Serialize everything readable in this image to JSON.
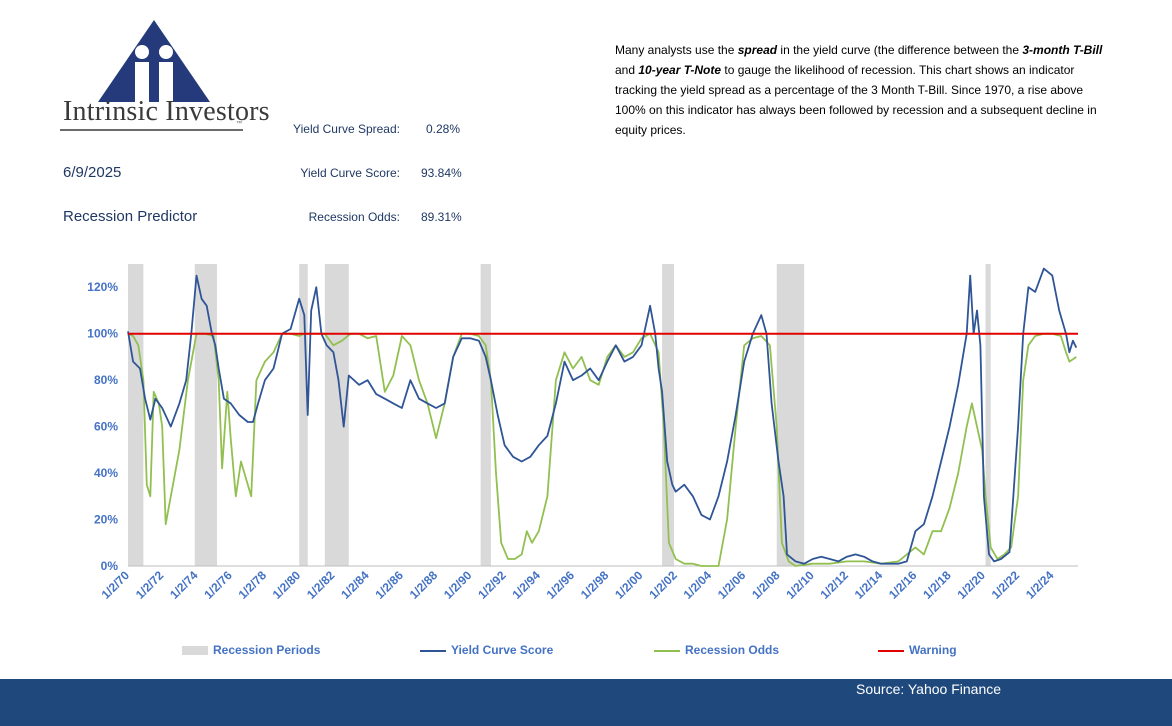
{
  "brand": {
    "name": "Intrinsic Investors"
  },
  "header": {
    "date": "6/9/2025",
    "title": "Recession Predictor",
    "metrics": [
      {
        "label": "Yield Curve Spread:",
        "value": "0.28%"
      },
      {
        "label": "Yield Curve Score:",
        "value": "93.84%"
      },
      {
        "label": "Recession Odds:",
        "value": "89.31%"
      }
    ]
  },
  "description": {
    "p1": "Many analysts use the ",
    "em1": "spread",
    "p2": " in the yield curve (the difference between the ",
    "em2": "3-month T-Bill",
    "p3": " and ",
    "em3": "10-year T-Note",
    "p4": "  to gauge the likelihood of recession.  This chart shows an indicator tracking the yield spread as a percentage of the 3 Month T-Bill.  Since 1970, a rise above 100% on this indicator has always been followed by recession and a subsequent decline in equity prices."
  },
  "colors": {
    "score": "#2f5597",
    "odds": "#92c050",
    "warning": "#e00000",
    "recession": "#d9d9d9",
    "axis_text": "#4472c4",
    "footer": "#1f497d"
  },
  "chart_data": {
    "type": "line",
    "x_axis": {
      "min": 1970.0,
      "max": 2025.5,
      "tick_years": [
        1970,
        1972,
        1974,
        1976,
        1978,
        1980,
        1982,
        1984,
        1986,
        1988,
        1990,
        1992,
        1994,
        1996,
        1998,
        2000,
        2002,
        2004,
        2006,
        2008,
        2010,
        2012,
        2014,
        2016,
        2018,
        2020,
        2022,
        2024
      ],
      "tick_labels": [
        "1/2/70",
        "1/2/72",
        "1/2/74",
        "1/2/76",
        "1/2/78",
        "1/2/80",
        "1/2/82",
        "1/2/84",
        "1/2/86",
        "1/2/88",
        "1/2/90",
        "1/2/92",
        "1/2/94",
        "1/2/96",
        "1/2/98",
        "1/2/00",
        "1/2/02",
        "1/2/04",
        "1/2/06",
        "1/2/08",
        "1/2/10",
        "1/2/12",
        "1/2/14",
        "1/2/16",
        "1/2/18",
        "1/2/20",
        "1/2/22",
        "1/2/24"
      ]
    },
    "y_axis": {
      "min": 0,
      "max": 130,
      "ticks": [
        0,
        20,
        40,
        60,
        80,
        100,
        120
      ],
      "tick_labels": [
        "0%",
        "20%",
        "40%",
        "60%",
        "80%",
        "100%",
        "120%"
      ]
    },
    "recession_periods": [
      [
        1970.0,
        1970.9
      ],
      [
        1973.9,
        1975.2
      ],
      [
        1980.0,
        1980.5
      ],
      [
        1981.5,
        1982.9
      ],
      [
        1990.6,
        1991.2
      ],
      [
        2001.2,
        2001.9
      ],
      [
        2007.9,
        2009.5
      ],
      [
        2020.1,
        2020.4
      ]
    ],
    "warning_level": 100,
    "series": [
      {
        "name": "Yield Curve Score",
        "points": [
          [
            1970.0,
            101
          ],
          [
            1970.3,
            88
          ],
          [
            1970.7,
            85
          ],
          [
            1971.0,
            72
          ],
          [
            1971.3,
            63
          ],
          [
            1971.6,
            72
          ],
          [
            1972.0,
            68
          ],
          [
            1972.5,
            60
          ],
          [
            1973.0,
            70
          ],
          [
            1973.4,
            80
          ],
          [
            1973.7,
            100
          ],
          [
            1974.0,
            125
          ],
          [
            1974.3,
            115
          ],
          [
            1974.6,
            112
          ],
          [
            1974.9,
            100
          ],
          [
            1975.1,
            95
          ],
          [
            1975.3,
            85
          ],
          [
            1975.6,
            72
          ],
          [
            1976.0,
            70
          ],
          [
            1976.5,
            65
          ],
          [
            1977.0,
            62
          ],
          [
            1977.3,
            62
          ],
          [
            1977.6,
            70
          ],
          [
            1978.0,
            80
          ],
          [
            1978.5,
            85
          ],
          [
            1979.0,
            100
          ],
          [
            1979.5,
            102
          ],
          [
            1980.0,
            115
          ],
          [
            1980.3,
            108
          ],
          [
            1980.5,
            65
          ],
          [
            1980.7,
            110
          ],
          [
            1981.0,
            120
          ],
          [
            1981.3,
            100
          ],
          [
            1981.6,
            95
          ],
          [
            1982.0,
            92
          ],
          [
            1982.3,
            80
          ],
          [
            1982.6,
            60
          ],
          [
            1982.9,
            82
          ],
          [
            1983.5,
            78
          ],
          [
            1984.0,
            80
          ],
          [
            1984.5,
            74
          ],
          [
            1985.0,
            72
          ],
          [
            1985.5,
            70
          ],
          [
            1986.0,
            68
          ],
          [
            1986.5,
            80
          ],
          [
            1987.0,
            72
          ],
          [
            1987.5,
            70
          ],
          [
            1988.0,
            68
          ],
          [
            1988.5,
            70
          ],
          [
            1989.0,
            90
          ],
          [
            1989.5,
            98
          ],
          [
            1990.0,
            98
          ],
          [
            1990.5,
            97
          ],
          [
            1990.9,
            90
          ],
          [
            1991.2,
            80
          ],
          [
            1991.6,
            65
          ],
          [
            1992.0,
            52
          ],
          [
            1992.5,
            47
          ],
          [
            1993.0,
            45
          ],
          [
            1993.5,
            47
          ],
          [
            1994.0,
            52
          ],
          [
            1994.5,
            56
          ],
          [
            1995.0,
            70
          ],
          [
            1995.5,
            88
          ],
          [
            1996.0,
            80
          ],
          [
            1996.5,
            82
          ],
          [
            1997.0,
            85
          ],
          [
            1997.5,
            80
          ],
          [
            1998.0,
            88
          ],
          [
            1998.5,
            95
          ],
          [
            1999.0,
            88
          ],
          [
            1999.5,
            90
          ],
          [
            2000.0,
            95
          ],
          [
            2000.5,
            112
          ],
          [
            2000.8,
            100
          ],
          [
            2001.0,
            85
          ],
          [
            2001.2,
            75
          ],
          [
            2001.5,
            45
          ],
          [
            2001.8,
            35
          ],
          [
            2002.0,
            32
          ],
          [
            2002.5,
            35
          ],
          [
            2003.0,
            30
          ],
          [
            2003.5,
            22
          ],
          [
            2004.0,
            20
          ],
          [
            2004.5,
            30
          ],
          [
            2005.0,
            45
          ],
          [
            2005.5,
            65
          ],
          [
            2006.0,
            88
          ],
          [
            2006.5,
            100
          ],
          [
            2007.0,
            108
          ],
          [
            2007.3,
            100
          ],
          [
            2007.6,
            70
          ],
          [
            2008.0,
            45
          ],
          [
            2008.3,
            30
          ],
          [
            2008.5,
            5
          ],
          [
            2009.0,
            2
          ],
          [
            2009.5,
            1
          ],
          [
            2010.0,
            3
          ],
          [
            2010.5,
            4
          ],
          [
            2011.0,
            3
          ],
          [
            2011.5,
            2
          ],
          [
            2012.0,
            4
          ],
          [
            2012.5,
            5
          ],
          [
            2013.0,
            4
          ],
          [
            2013.5,
            2
          ],
          [
            2014.0,
            1
          ],
          [
            2014.5,
            1
          ],
          [
            2015.0,
            1
          ],
          [
            2015.5,
            2
          ],
          [
            2016.0,
            15
          ],
          [
            2016.5,
            18
          ],
          [
            2017.0,
            30
          ],
          [
            2017.5,
            45
          ],
          [
            2018.0,
            60
          ],
          [
            2018.5,
            78
          ],
          [
            2019.0,
            100
          ],
          [
            2019.2,
            125
          ],
          [
            2019.4,
            100
          ],
          [
            2019.6,
            110
          ],
          [
            2019.8,
            95
          ],
          [
            2020.0,
            30
          ],
          [
            2020.3,
            5
          ],
          [
            2020.6,
            2
          ],
          [
            2021.0,
            3
          ],
          [
            2021.5,
            6
          ],
          [
            2022.0,
            60
          ],
          [
            2022.3,
            100
          ],
          [
            2022.6,
            120
          ],
          [
            2023.0,
            118
          ],
          [
            2023.5,
            128
          ],
          [
            2024.0,
            125
          ],
          [
            2024.4,
            110
          ],
          [
            2024.8,
            100
          ],
          [
            2025.0,
            92
          ],
          [
            2025.2,
            97
          ],
          [
            2025.4,
            94
          ]
        ]
      },
      {
        "name": "Recession Odds",
        "points": [
          [
            1970.0,
            100
          ],
          [
            1970.3,
            99
          ],
          [
            1970.6,
            95
          ],
          [
            1970.9,
            80
          ],
          [
            1971.1,
            35
          ],
          [
            1971.3,
            30
          ],
          [
            1971.5,
            75
          ],
          [
            1971.8,
            70
          ],
          [
            1972.0,
            60
          ],
          [
            1972.2,
            18
          ],
          [
            1972.5,
            30
          ],
          [
            1973.0,
            50
          ],
          [
            1973.5,
            80
          ],
          [
            1974.0,
            100
          ],
          [
            1974.5,
            100
          ],
          [
            1975.0,
            99
          ],
          [
            1975.3,
            80
          ],
          [
            1975.5,
            42
          ],
          [
            1975.8,
            75
          ],
          [
            1976.0,
            55
          ],
          [
            1976.3,
            30
          ],
          [
            1976.6,
            45
          ],
          [
            1977.0,
            35
          ],
          [
            1977.2,
            30
          ],
          [
            1977.5,
            80
          ],
          [
            1978.0,
            88
          ],
          [
            1978.5,
            92
          ],
          [
            1979.0,
            100
          ],
          [
            1979.5,
            100
          ],
          [
            1980.0,
            99
          ],
          [
            1980.3,
            100
          ],
          [
            1980.5,
            100
          ],
          [
            1981.0,
            100
          ],
          [
            1981.5,
            100
          ],
          [
            1982.0,
            95
          ],
          [
            1982.5,
            97
          ],
          [
            1983.0,
            100
          ],
          [
            1983.5,
            100
          ],
          [
            1984.0,
            98
          ],
          [
            1984.5,
            99
          ],
          [
            1985.0,
            75
          ],
          [
            1985.5,
            82
          ],
          [
            1986.0,
            99
          ],
          [
            1986.5,
            95
          ],
          [
            1987.0,
            80
          ],
          [
            1987.5,
            70
          ],
          [
            1988.0,
            55
          ],
          [
            1988.5,
            70
          ],
          [
            1989.0,
            90
          ],
          [
            1989.5,
            100
          ],
          [
            1990.0,
            100
          ],
          [
            1990.5,
            99
          ],
          [
            1990.9,
            95
          ],
          [
            1991.2,
            80
          ],
          [
            1991.5,
            40
          ],
          [
            1991.8,
            10
          ],
          [
            1992.2,
            3
          ],
          [
            1992.6,
            3
          ],
          [
            1993.0,
            5
          ],
          [
            1993.3,
            15
          ],
          [
            1993.6,
            10
          ],
          [
            1994.0,
            15
          ],
          [
            1994.5,
            30
          ],
          [
            1995.0,
            80
          ],
          [
            1995.5,
            92
          ],
          [
            1996.0,
            85
          ],
          [
            1996.5,
            90
          ],
          [
            1997.0,
            80
          ],
          [
            1997.5,
            78
          ],
          [
            1998.0,
            90
          ],
          [
            1998.5,
            95
          ],
          [
            1999.0,
            90
          ],
          [
            1999.5,
            92
          ],
          [
            2000.0,
            98
          ],
          [
            2000.5,
            100
          ],
          [
            2001.0,
            92
          ],
          [
            2001.3,
            60
          ],
          [
            2001.6,
            10
          ],
          [
            2002.0,
            3
          ],
          [
            2002.5,
            1
          ],
          [
            2003.0,
            1
          ],
          [
            2003.5,
            0
          ],
          [
            2004.0,
            0
          ],
          [
            2004.5,
            0
          ],
          [
            2005.0,
            20
          ],
          [
            2005.5,
            60
          ],
          [
            2006.0,
            95
          ],
          [
            2006.5,
            98
          ],
          [
            2007.0,
            99
          ],
          [
            2007.5,
            95
          ],
          [
            2007.9,
            60
          ],
          [
            2008.2,
            10
          ],
          [
            2008.6,
            2
          ],
          [
            2009.0,
            0
          ],
          [
            2010.0,
            1
          ],
          [
            2011.0,
            1
          ],
          [
            2012.0,
            2
          ],
          [
            2013.0,
            2
          ],
          [
            2014.0,
            1
          ],
          [
            2015.0,
            2
          ],
          [
            2015.5,
            5
          ],
          [
            2016.0,
            8
          ],
          [
            2016.5,
            5
          ],
          [
            2017.0,
            15
          ],
          [
            2017.5,
            15
          ],
          [
            2018.0,
            25
          ],
          [
            2018.5,
            40
          ],
          [
            2019.0,
            60
          ],
          [
            2019.3,
            70
          ],
          [
            2019.6,
            60
          ],
          [
            2019.9,
            50
          ],
          [
            2020.1,
            30
          ],
          [
            2020.4,
            8
          ],
          [
            2020.8,
            3
          ],
          [
            2021.2,
            5
          ],
          [
            2021.6,
            8
          ],
          [
            2022.0,
            30
          ],
          [
            2022.3,
            80
          ],
          [
            2022.6,
            95
          ],
          [
            2023.0,
            99
          ],
          [
            2023.5,
            100
          ],
          [
            2024.0,
            100
          ],
          [
            2024.5,
            99
          ],
          [
            2024.8,
            92
          ],
          [
            2025.0,
            88
          ],
          [
            2025.2,
            89
          ],
          [
            2025.4,
            90
          ]
        ]
      }
    ],
    "legend": [
      {
        "label": "Recession Periods"
      },
      {
        "label": "Yield Curve Score"
      },
      {
        "label": "Recession Odds"
      },
      {
        "label": "Warning"
      }
    ]
  },
  "source": "Source:  Yahoo Finance"
}
